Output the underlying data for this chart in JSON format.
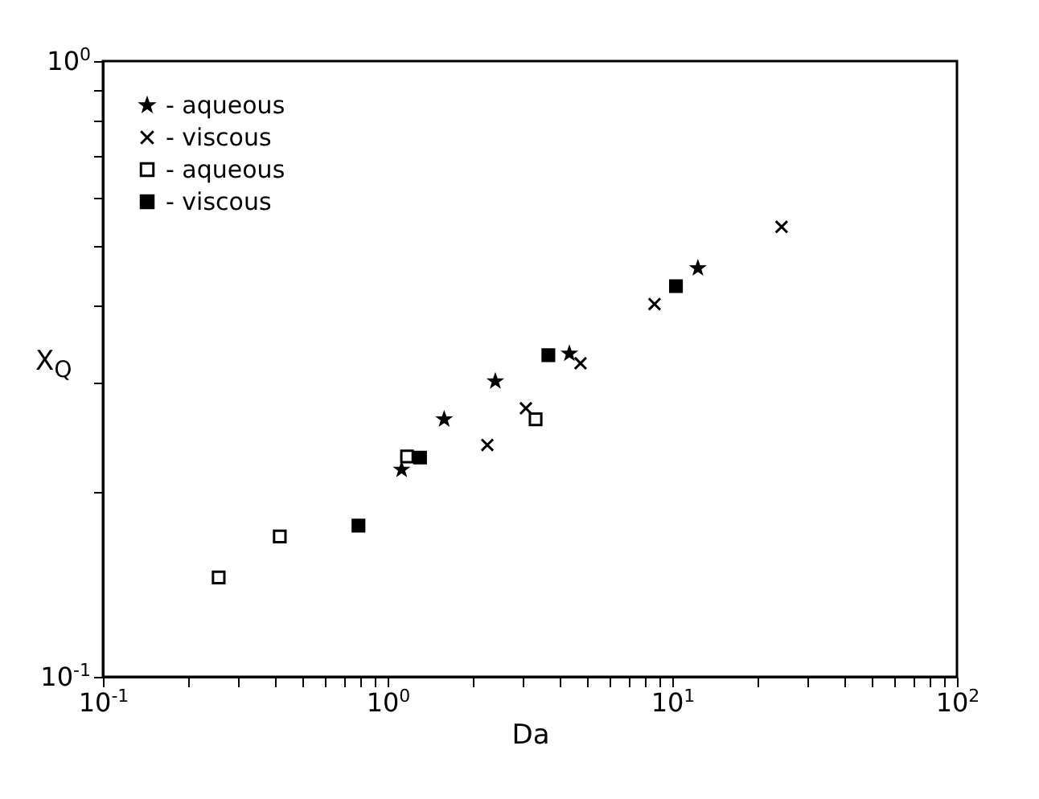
{
  "chart_data": {
    "type": "scatter",
    "xlabel": "Da",
    "ylabel": "X$_{Q}$",
    "log": "xy",
    "grid": false,
    "legend": "top left",
    "xlim": [
      0.1,
      100
    ],
    "ylim": [
      0.1,
      1
    ],
    "xticks": [
      {
        "value": 0.1,
        "label": "10$^{-1}$"
      },
      {
        "value": 0.2,
        "label": null
      },
      {
        "value": 0.3,
        "label": null
      },
      {
        "value": 0.4,
        "label": null
      },
      {
        "value": 0.5,
        "label": null
      },
      {
        "value": 0.6,
        "label": null
      },
      {
        "value": 0.7,
        "label": null
      },
      {
        "value": 0.8,
        "label": null
      },
      {
        "value": 0.9,
        "label": null
      },
      {
        "value": 1,
        "label": "10$^{0}$"
      },
      {
        "value": 2,
        "label": null
      },
      {
        "value": 3,
        "label": null
      },
      {
        "value": 4,
        "label": null
      },
      {
        "value": 5,
        "label": null
      },
      {
        "value": 6,
        "label": null
      },
      {
        "value": 7,
        "label": null
      },
      {
        "value": 8,
        "label": null
      },
      {
        "value": 9,
        "label": null
      },
      {
        "value": 10,
        "label": "10$^{1}$"
      },
      {
        "value": 20,
        "label": null
      },
      {
        "value": 30,
        "label": null
      },
      {
        "value": 40,
        "label": null
      },
      {
        "value": 50,
        "label": null
      },
      {
        "value": 60,
        "label": null
      },
      {
        "value": 70,
        "label": null
      },
      {
        "value": 80,
        "label": null
      },
      {
        "value": 90,
        "label": null
      },
      {
        "value": 100,
        "label": "10$^{2}$"
      }
    ],
    "yticks": [
      {
        "value": 0.1,
        "label": "10$^{-1}$"
      },
      {
        "value": 0.2,
        "label": null
      },
      {
        "value": 0.3,
        "label": null
      },
      {
        "value": 0.4,
        "label": null
      },
      {
        "value": 0.5,
        "label": null
      },
      {
        "value": 0.6,
        "label": null
      },
      {
        "value": 0.7,
        "label": null
      },
      {
        "value": 0.8,
        "label": null
      },
      {
        "value": 0.9,
        "label": null
      },
      {
        "value": 1,
        "label": "10$^{0}$"
      }
    ],
    "series": [
      {
        "name": "- aqueous",
        "marker": "star",
        "color": "#000000",
        "x": [
          1.12,
          1.58,
          2.39,
          4.35,
          12.3
        ],
        "values": [
          0.217,
          0.262,
          0.302,
          0.335,
          0.461
        ]
      },
      {
        "name": "- viscous",
        "marker": "cross",
        "color": "#000000",
        "x": [
          2.24,
          3.06,
          4.76,
          8.66,
          24.2
        ],
        "values": [
          0.238,
          0.273,
          0.323,
          0.403,
          0.538
        ]
      },
      {
        "name": "- aqueous",
        "marker": "square",
        "color": "#ffffff",
        "x": [
          0.255,
          0.418,
          1.17,
          3.31
        ],
        "values": [
          0.145,
          0.169,
          0.228,
          0.262
        ]
      },
      {
        "name": "- viscous",
        "marker": "square",
        "color": "#000000",
        "x": [
          0.79,
          1.3,
          3.67,
          10.3
        ],
        "values": [
          0.176,
          0.227,
          0.333,
          0.431
        ]
      }
    ]
  }
}
